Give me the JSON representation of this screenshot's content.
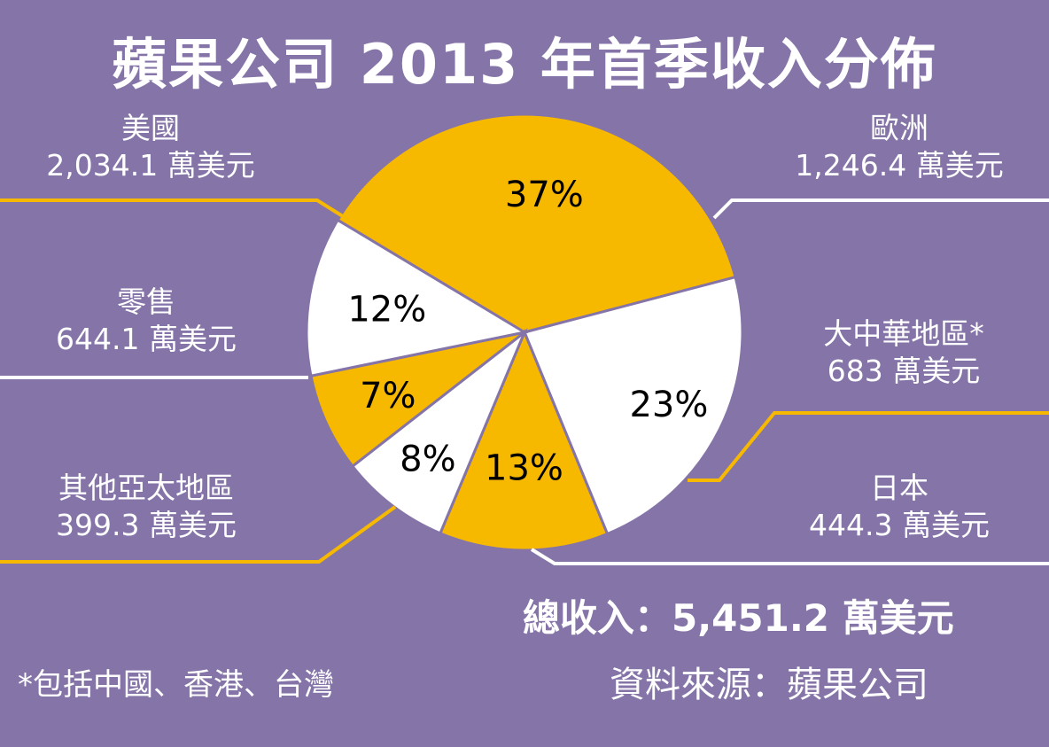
{
  "title": "蘋果公司 2013 年首季收入分佈",
  "colors": {
    "background": "#8574a8",
    "slice_gold": "#f7b800",
    "slice_white": "#ffffff",
    "text": "#ffffff",
    "pct_text": "#000000"
  },
  "chart_data": {
    "type": "pie",
    "unit": "萬美元",
    "slices": [
      {
        "name": "美國",
        "value": 2034.1,
        "value_label": "2,034.1 萬美元",
        "percent_label": "37%",
        "color": "#f7b800"
      },
      {
        "name": "歐洲",
        "value": 1246.4,
        "value_label": "1,246.4 萬美元",
        "percent_label": "23%",
        "color": "#ffffff"
      },
      {
        "name": "大中華地區*",
        "value": 683,
        "value_label": "683 萬美元",
        "percent_label": "13%",
        "color": "#f7b800"
      },
      {
        "name": "日本",
        "value": 444.3,
        "value_label": "444.3 萬美元",
        "percent_label": "8%",
        "color": "#ffffff"
      },
      {
        "name": "其他亞太地區",
        "value": 399.3,
        "value_label": "399.3 萬美元",
        "percent_label": "7%",
        "color": "#f7b800"
      },
      {
        "name": "零售",
        "value": 644.1,
        "value_label": "644.1 萬美元",
        "percent_label": "12%",
        "color": "#ffffff"
      }
    ],
    "total_label": "總收入：5,451.2 萬美元"
  },
  "footnote": "*包括中國、香港、台灣",
  "source": "資料來源：蘋果公司"
}
